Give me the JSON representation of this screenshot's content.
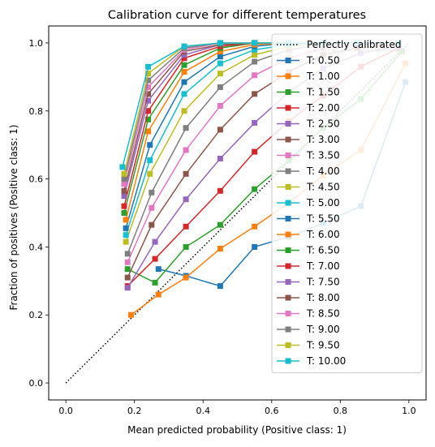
{
  "chart_data": {
    "type": "line",
    "title": "Calibration curve for different temperatures",
    "xlabel": "Mean predicted probability (Positive class: 1)",
    "ylabel": "Fraction of positives (Positive class: 1)",
    "xlim": [
      -0.05,
      1.05
    ],
    "ylim": [
      -0.05,
      1.05
    ],
    "xticks": [
      "0.0",
      "0.2",
      "0.4",
      "0.6",
      "0.8",
      "1.0"
    ],
    "yticks": [
      "0.0",
      "0.2",
      "0.4",
      "0.6",
      "0.8",
      "1.0"
    ],
    "legend_position": "upper-right",
    "grid": false,
    "reference_line": {
      "name": "Perfectly calibrated",
      "x": [
        0,
        1
      ],
      "y": [
        0,
        1
      ],
      "style": "dotted",
      "color": "#000000"
    },
    "palette": [
      "#1f77b4",
      "#ff7f0e",
      "#2ca02c",
      "#d62728",
      "#9467bd",
      "#8c564b",
      "#e377c2",
      "#7f7f7f",
      "#bcbd22",
      "#17becf"
    ],
    "series": [
      {
        "name": "T: 0.50",
        "x": [
          0.27,
          0.35,
          0.45,
          0.55,
          0.65,
          0.75,
          0.86,
          0.99
        ],
        "y": [
          0.335,
          0.315,
          0.285,
          0.4,
          0.43,
          0.47,
          0.52,
          0.885
        ]
      },
      {
        "name": "T: 1.00",
        "x": [
          0.19,
          0.27,
          0.35,
          0.45,
          0.55,
          0.65,
          0.75,
          0.86,
          0.99
        ],
        "y": [
          0.2,
          0.26,
          0.31,
          0.395,
          0.46,
          0.53,
          0.61,
          0.685,
          0.94
        ]
      },
      {
        "name": "T: 1.50",
        "x": [
          0.18,
          0.26,
          0.35,
          0.45,
          0.55,
          0.65,
          0.75,
          0.86,
          0.98
        ],
        "y": [
          0.335,
          0.295,
          0.4,
          0.465,
          0.57,
          0.655,
          0.75,
          0.835,
          0.975
        ]
      },
      {
        "name": "T: 2.00",
        "x": [
          0.18,
          0.26,
          0.35,
          0.45,
          0.55,
          0.65,
          0.75,
          0.86,
          0.97
        ],
        "y": [
          0.285,
          0.365,
          0.46,
          0.565,
          0.68,
          0.77,
          0.845,
          0.93,
          0.985
        ]
      },
      {
        "name": "T: 2.50",
        "x": [
          0.18,
          0.26,
          0.35,
          0.45,
          0.55,
          0.65,
          0.75,
          0.86,
          0.97
        ],
        "y": [
          0.28,
          0.415,
          0.54,
          0.66,
          0.765,
          0.855,
          0.925,
          0.97,
          0.99
        ]
      },
      {
        "name": "T: 3.00",
        "x": [
          0.18,
          0.25,
          0.35,
          0.45,
          0.55,
          0.65,
          0.75,
          0.85,
          0.97
        ],
        "y": [
          0.31,
          0.465,
          0.615,
          0.745,
          0.85,
          0.915,
          0.965,
          0.985,
          0.995
        ]
      },
      {
        "name": "T: 3.50",
        "x": [
          0.18,
          0.25,
          0.35,
          0.45,
          0.55,
          0.65,
          0.75,
          0.85,
          0.97
        ],
        "y": [
          0.355,
          0.515,
          0.685,
          0.815,
          0.905,
          0.955,
          0.985,
          0.995,
          1.0
        ]
      },
      {
        "name": "T: 4.00",
        "x": [
          0.18,
          0.25,
          0.35,
          0.45,
          0.55,
          0.65,
          0.75,
          0.85,
          0.97
        ],
        "y": [
          0.38,
          0.56,
          0.75,
          0.87,
          0.945,
          0.98,
          0.995,
          1.0,
          1.0
        ]
      },
      {
        "name": "T: 4.50",
        "x": [
          0.175,
          0.245,
          0.345,
          0.45,
          0.55,
          0.65,
          0.75,
          0.85,
          0.97
        ],
        "y": [
          0.415,
          0.615,
          0.8,
          0.91,
          0.965,
          0.99,
          1.0,
          1.0,
          1.0
        ]
      },
      {
        "name": "T: 5.00",
        "x": [
          0.175,
          0.245,
          0.345,
          0.45,
          0.55,
          0.65,
          0.75,
          0.85,
          0.97
        ],
        "y": [
          0.435,
          0.655,
          0.85,
          0.94,
          0.98,
          0.995,
          1.0,
          1.0,
          1.0
        ]
      },
      {
        "name": "T: 5.50",
        "x": [
          0.175,
          0.245,
          0.345,
          0.45,
          0.55,
          0.65,
          0.75,
          0.85,
          0.97
        ],
        "y": [
          0.455,
          0.7,
          0.885,
          0.96,
          0.99,
          1.0,
          1.0,
          1.0,
          1.0
        ]
      },
      {
        "name": "T: 6.00",
        "x": [
          0.175,
          0.24,
          0.345,
          0.45,
          0.55,
          0.65,
          0.75,
          0.85,
          0.97
        ],
        "y": [
          0.48,
          0.74,
          0.915,
          0.975,
          0.995,
          1.0,
          1.0,
          1.0,
          1.0
        ]
      },
      {
        "name": "T: 6.50",
        "x": [
          0.17,
          0.24,
          0.345,
          0.45,
          0.55,
          0.65,
          0.75,
          0.85,
          0.97
        ],
        "y": [
          0.5,
          0.775,
          0.935,
          0.985,
          1.0,
          1.0,
          1.0,
          1.0,
          1.0
        ]
      },
      {
        "name": "T: 7.00",
        "x": [
          0.17,
          0.24,
          0.345,
          0.45,
          0.55,
          0.65,
          0.75,
          0.85,
          0.97
        ],
        "y": [
          0.52,
          0.8,
          0.955,
          0.99,
          1.0,
          1.0,
          1.0,
          1.0,
          1.0
        ]
      },
      {
        "name": "T: 7.50",
        "x": [
          0.17,
          0.24,
          0.345,
          0.45,
          0.55,
          0.65,
          0.75,
          0.85,
          0.97
        ],
        "y": [
          0.55,
          0.83,
          0.965,
          0.995,
          1.0,
          1.0,
          1.0,
          1.0,
          1.0
        ]
      },
      {
        "name": "T: 8.00",
        "x": [
          0.17,
          0.24,
          0.345,
          0.45,
          0.55,
          0.65,
          0.75,
          0.85,
          0.97
        ],
        "y": [
          0.565,
          0.85,
          0.975,
          0.995,
          1.0,
          1.0,
          1.0,
          1.0,
          1.0
        ]
      },
      {
        "name": "T: 8.50",
        "x": [
          0.17,
          0.24,
          0.345,
          0.45,
          0.55,
          0.65,
          0.75,
          0.85,
          0.97
        ],
        "y": [
          0.585,
          0.87,
          0.98,
          1.0,
          1.0,
          1.0,
          1.0,
          1.0,
          1.0
        ]
      },
      {
        "name": "T: 9.00",
        "x": [
          0.17,
          0.24,
          0.345,
          0.45,
          0.55,
          0.65,
          0.75,
          0.85,
          0.97
        ],
        "y": [
          0.6,
          0.89,
          0.985,
          1.0,
          1.0,
          1.0,
          1.0,
          1.0,
          1.0
        ]
      },
      {
        "name": "T: 9.50",
        "x": [
          0.17,
          0.24,
          0.345,
          0.45,
          0.55,
          0.65,
          0.75,
          0.85,
          0.97
        ],
        "y": [
          0.615,
          0.91,
          0.99,
          1.0,
          1.0,
          1.0,
          1.0,
          1.0,
          1.0
        ]
      },
      {
        "name": "T: 10.00",
        "x": [
          0.165,
          0.24,
          0.345,
          0.45,
          0.55,
          0.65,
          0.75,
          0.85,
          0.97
        ],
        "y": [
          0.635,
          0.93,
          0.99,
          1.0,
          1.0,
          1.0,
          1.0,
          1.0,
          1.0
        ]
      }
    ]
  }
}
